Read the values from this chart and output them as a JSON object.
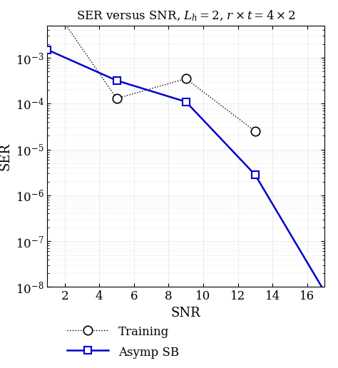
{
  "title": "SER versus SNR, $L_h = 2$, $r \\times t = 4 \\times 2$",
  "xlabel": "SNR",
  "ylabel": "SER",
  "xlim": [
    1,
    17
  ],
  "ylim": [
    1e-08,
    0.005
  ],
  "xticks": [
    2,
    4,
    6,
    8,
    10,
    12,
    14,
    16
  ],
  "training_snr": [
    1,
    5,
    9,
    13
  ],
  "training_ser": [
    0.02,
    0.00013,
    0.00035,
    2.5e-05
  ],
  "asymp_snr": [
    1,
    5,
    9,
    13,
    17
  ],
  "asymp_ser": [
    0.0015,
    0.00032,
    0.00011,
    2.8e-06,
    8e-09
  ],
  "training_color": "#000000",
  "asymp_color": "#0000cc",
  "background_color": "#ffffff",
  "grid_color": "#888888",
  "title_fontsize": 12,
  "label_fontsize": 13,
  "tick_fontsize": 12,
  "legend_fontsize": 12
}
